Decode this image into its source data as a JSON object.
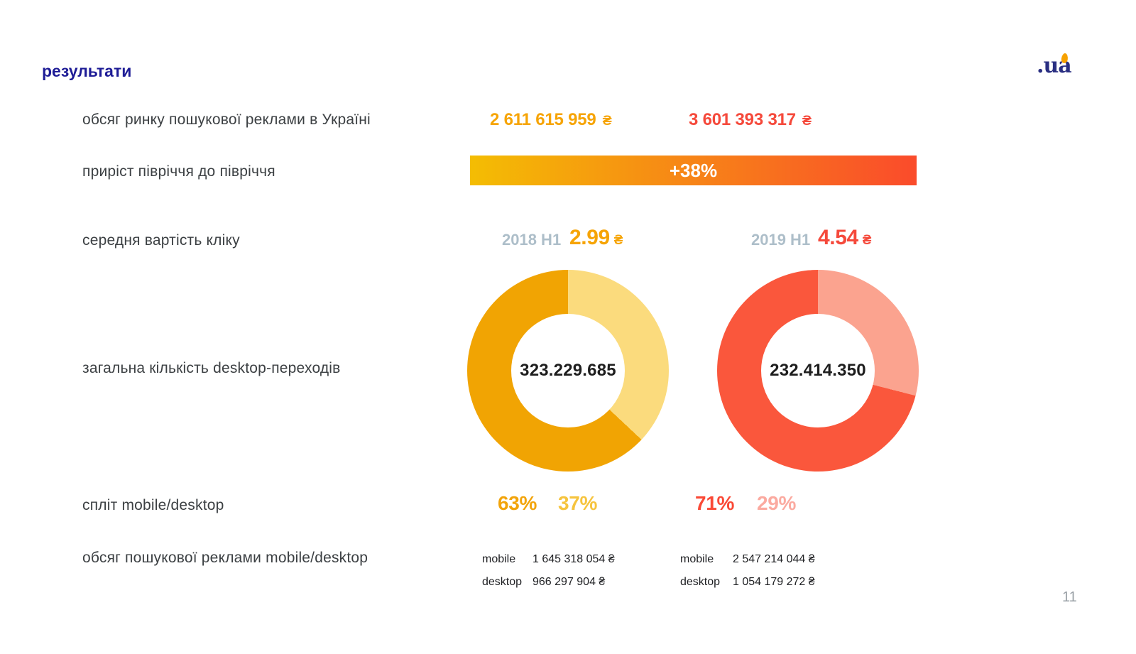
{
  "page": {
    "title": "результати",
    "page_number": "11",
    "logo_text": ".ua"
  },
  "colors": {
    "title_blue": "#1e1c96",
    "label_gray": "#3c4043",
    "accent_2018": "#f6a405",
    "accent_2019": "#f5493b",
    "period_gray": "#adbec9",
    "growth_gradient_start": "#f4bd03",
    "growth_gradient_end": "#fa4b2b",
    "logo_navy": "#2a2f82",
    "logo_orange": "#f7a200"
  },
  "rows": {
    "market_volume": {
      "label": "обсяг ринку пошукової реклами в Україні",
      "value_2018": "2 611 615 959",
      "value_2019": "3 601 393 317",
      "currency": "₴"
    },
    "growth": {
      "label": "приріст півріччя до півріччя",
      "value": "+38%"
    },
    "cpc": {
      "label": "середня вартість кліку",
      "period_2018": "2018 H1",
      "value_2018": "2.99",
      "period_2019": "2019 H1",
      "value_2019": "4.54",
      "currency": "₴"
    },
    "transitions": {
      "label": "загальна кількість desktop-переходів"
    },
    "split": {
      "label": "спліт mobile/desktop",
      "mobile_2018": "63%",
      "desktop_2018": "37%",
      "mobile_2019": "71%",
      "desktop_2019": "29%"
    },
    "ad_volume": {
      "label": "обсяг пошукової реклами mobile/desktop",
      "mobile_label": "mobile",
      "desktop_label": "desktop",
      "mobile_2018": "1 645 318 054 ₴",
      "desktop_2018": "966 297 904 ₴",
      "mobile_2019": "2 547 214 044 ₴",
      "desktop_2019": "1 054 179 272 ₴"
    }
  },
  "chart_data": [
    {
      "type": "pie",
      "donut": true,
      "title": "загальна кількість desktop-переходів — 2018 H1",
      "center_label": "323.229.685",
      "labels": [
        "mobile",
        "desktop"
      ],
      "values": [
        63,
        37
      ],
      "colors": [
        "#f1a403",
        "#fbdb7d"
      ],
      "layout": "desktop (light) slice starts at 12 o'clock clockwise; legend off"
    },
    {
      "type": "pie",
      "donut": true,
      "title": "загальна кількість desktop-переходів — 2019 H1",
      "center_label": "232.414.350",
      "labels": [
        "mobile",
        "desktop"
      ],
      "values": [
        71,
        29
      ],
      "colors": [
        "#fa573c",
        "#fba38f"
      ],
      "layout": "desktop (light) slice starts at 12 o'clock clockwise; legend off"
    }
  ]
}
